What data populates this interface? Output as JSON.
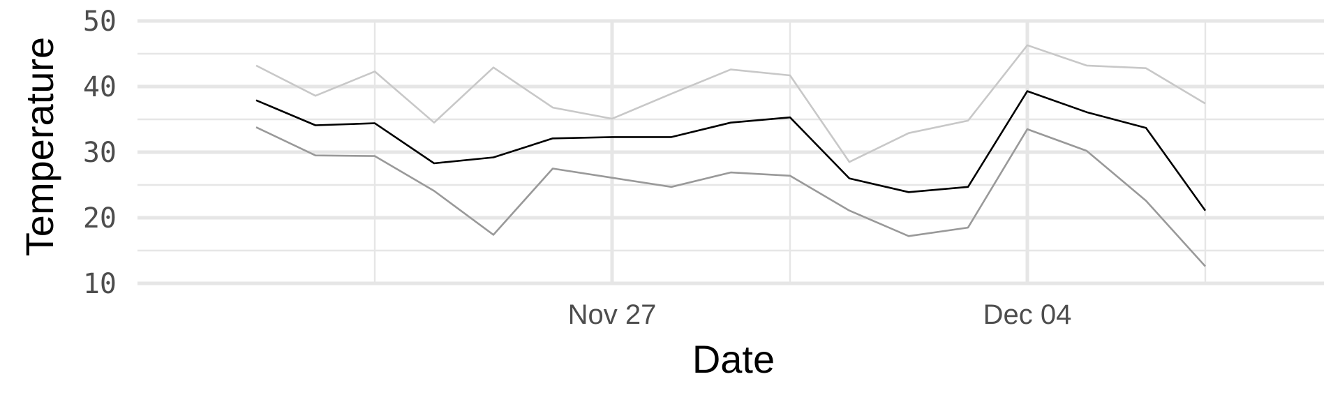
{
  "chart_data": {
    "type": "line",
    "title": "",
    "xlabel": "Date",
    "ylabel": "Temperature",
    "x": [
      "Nov 21",
      "Nov 22",
      "Nov 23",
      "Nov 24",
      "Nov 25",
      "Nov 26",
      "Nov 27",
      "Nov 28",
      "Nov 29",
      "Nov 30",
      "Dec 01",
      "Dec 02",
      "Dec 03",
      "Dec 04",
      "Dec 05",
      "Dec 06",
      "Dec 07",
      "Dec 08"
    ],
    "x_ticks": [
      "Nov 27",
      "Dec 04"
    ],
    "y_ticks": [
      "10",
      "20",
      "30",
      "40",
      "50"
    ],
    "ylim": [
      10,
      50
    ],
    "xlim": [
      "Nov 19",
      "Dec 09"
    ],
    "grid": true,
    "colors": {
      "upper": "#c8c8c8",
      "mean": "#000000",
      "lower": "#999999",
      "grid": "#e6e6e6",
      "tick": "#4d4d4d"
    },
    "series": [
      {
        "values": [
          43.2,
          38.6,
          42.3,
          34.5,
          42.9,
          36.8,
          35.1,
          38.9,
          42.6,
          41.7,
          28.5,
          32.9,
          34.8,
          46.3,
          43.2,
          42.8,
          37.4,
          null
        ]
      },
      {
        "values": [
          37.9,
          34.1,
          34.4,
          28.3,
          29.2,
          32.1,
          32.3,
          32.3,
          34.5,
          35.3,
          26.0,
          23.9,
          24.7,
          39.3,
          36.1,
          33.7,
          21.1,
          null
        ]
      },
      {
        "values": [
          33.8,
          29.5,
          29.4,
          24.1,
          17.4,
          27.5,
          26.1,
          24.7,
          26.9,
          26.4,
          21.1,
          17.2,
          18.5,
          33.5,
          30.2,
          22.6,
          12.6,
          null
        ]
      }
    ]
  }
}
